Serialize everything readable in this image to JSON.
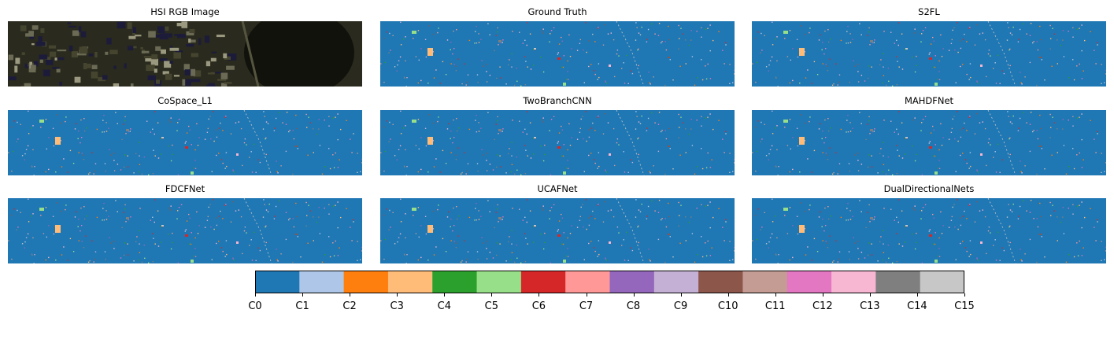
{
  "panels": [
    {
      "title": "HSI RGB Image",
      "kind": "rgb"
    },
    {
      "title": "Ground Truth",
      "kind": "map"
    },
    {
      "title": "S2FL",
      "kind": "map"
    },
    {
      "title": "CoSpace_L1",
      "kind": "map"
    },
    {
      "title": "TwoBranchCNN",
      "kind": "map"
    },
    {
      "title": "MAHDFNet",
      "kind": "map"
    },
    {
      "title": "FDCFNet",
      "kind": "map"
    },
    {
      "title": "UCAFNet",
      "kind": "map"
    },
    {
      "title": "DualDirectionalNets",
      "kind": "map"
    }
  ],
  "chart_data": {
    "type": "heatmap",
    "panel_titles": [
      "HSI RGB Image",
      "Ground Truth",
      "S2FL",
      "CoSpace_L1",
      "TwoBranchCNN",
      "MAHDFNet",
      "FDCFNet",
      "UCAFNet",
      "DualDirectionalNets"
    ],
    "layout_grid": "3x3",
    "colorbar": {
      "ticks": [
        "C0",
        "C1",
        "C2",
        "C3",
        "C4",
        "C5",
        "C6",
        "C7",
        "C8",
        "C9",
        "C10",
        "C11",
        "C12",
        "C13",
        "C14",
        "C15"
      ],
      "range": [
        0,
        15
      ],
      "colors": [
        "#1f77b4",
        "#aec7e8",
        "#ff7f0e",
        "#ffbb78",
        "#2ca02c",
        "#98df8a",
        "#d62728",
        "#ff9896",
        "#9467bd",
        "#c5b0d5",
        "#8c564b",
        "#c49c94",
        "#e377c2",
        "#f7b6d2",
        "#7f7f7f",
        "#c7c7c7"
      ]
    }
  }
}
